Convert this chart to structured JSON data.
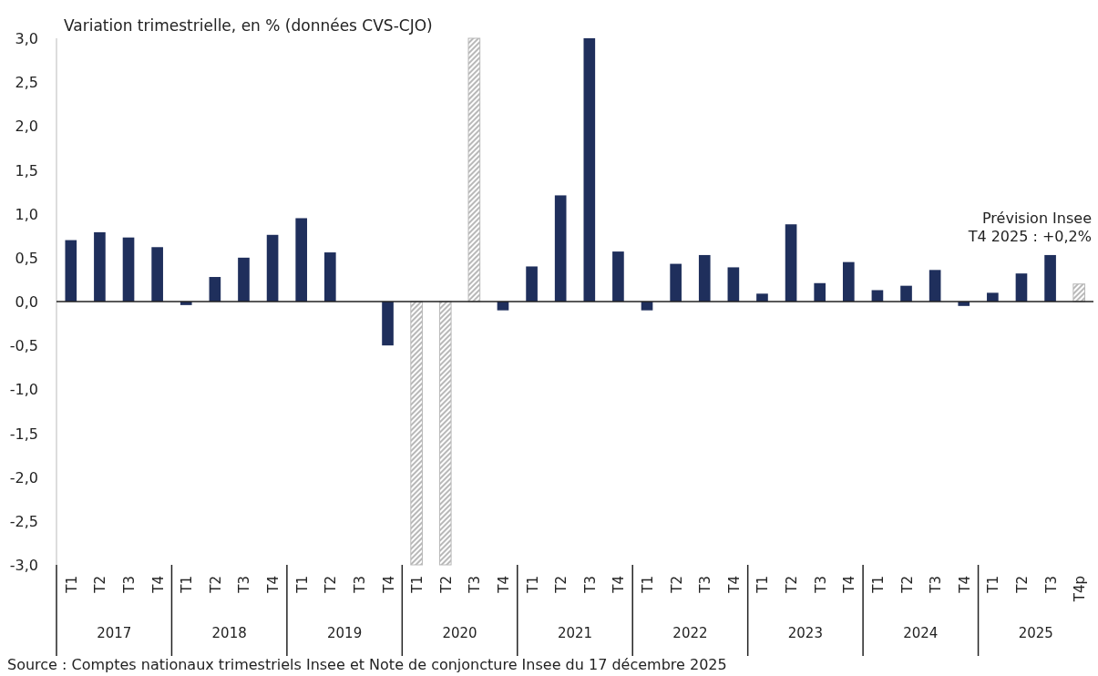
{
  "chart_data": {
    "type": "bar",
    "subtitle": "Variation trimestrielle, en % (données CVS-CJO)",
    "categories": [
      "T1",
      "T2",
      "T3",
      "T4",
      "T1",
      "T2",
      "T3",
      "T4",
      "T1",
      "T2",
      "T3",
      "T4",
      "T1",
      "T2",
      "T3",
      "T4",
      "T1",
      "T2",
      "T3",
      "T4",
      "T1",
      "T2",
      "T3",
      "T4",
      "T1",
      "T2",
      "T3",
      "T4",
      "T1",
      "T2",
      "T3",
      "T4",
      "T1",
      "T2",
      "T3",
      "T4p"
    ],
    "series": [
      {
        "color": "#1f2f5c",
        "values": [
          0.7,
          0.79,
          0.73,
          0.62,
          -0.04,
          0.28,
          0.5,
          0.76,
          0.95,
          0.56,
          0.0,
          -0.5,
          null,
          null,
          null,
          -0.1,
          0.4,
          1.21,
          3.0,
          0.57,
          -0.1,
          0.43,
          0.53,
          0.39,
          0.09,
          0.88,
          0.21,
          0.45,
          0.13,
          0.18,
          0.36,
          -0.05,
          0.1,
          0.32,
          0.53,
          null
        ]
      },
      {
        "color": "#b8b8b8",
        "values": [
          null,
          null,
          null,
          null,
          null,
          null,
          null,
          null,
          null,
          null,
          null,
          null,
          -3.0,
          -3.0,
          3.0,
          null,
          null,
          null,
          null,
          null,
          null,
          null,
          null,
          null,
          null,
          null,
          null,
          null,
          null,
          null,
          null,
          null,
          null,
          null,
          null,
          0.2
        ]
      }
    ],
    "ylim": [
      -3,
      3
    ],
    "yticks": [
      {
        "value": -3,
        "label": "-3,0"
      },
      {
        "value": -2.5,
        "label": "-2,5"
      },
      {
        "value": -2,
        "label": "-2,0"
      },
      {
        "value": -1.5,
        "label": "-1,5"
      },
      {
        "value": -1,
        "label": "-1,0"
      },
      {
        "value": -0.5,
        "label": "-0,5"
      },
      {
        "value": 0,
        "label": "0,0"
      },
      {
        "value": 0.5,
        "label": "0,5"
      },
      {
        "value": 1,
        "label": "1,0"
      },
      {
        "value": 1.5,
        "label": "1,5"
      },
      {
        "value": 2,
        "label": "2,0"
      },
      {
        "value": 2.5,
        "label": "2,5"
      },
      {
        "value": 3,
        "label": "3,0"
      }
    ],
    "annotations": [
      "Prévision Insee\nT4 2025 : +0,2%",
      "Source : Comptes nationaux trimestriels Insee et Note de conjoncture Insee du 17 décembre 2025",
      "2017",
      "2018",
      "2019",
      "2020",
      "2021",
      "2022",
      "2023",
      "2024",
      "2025"
    ]
  }
}
